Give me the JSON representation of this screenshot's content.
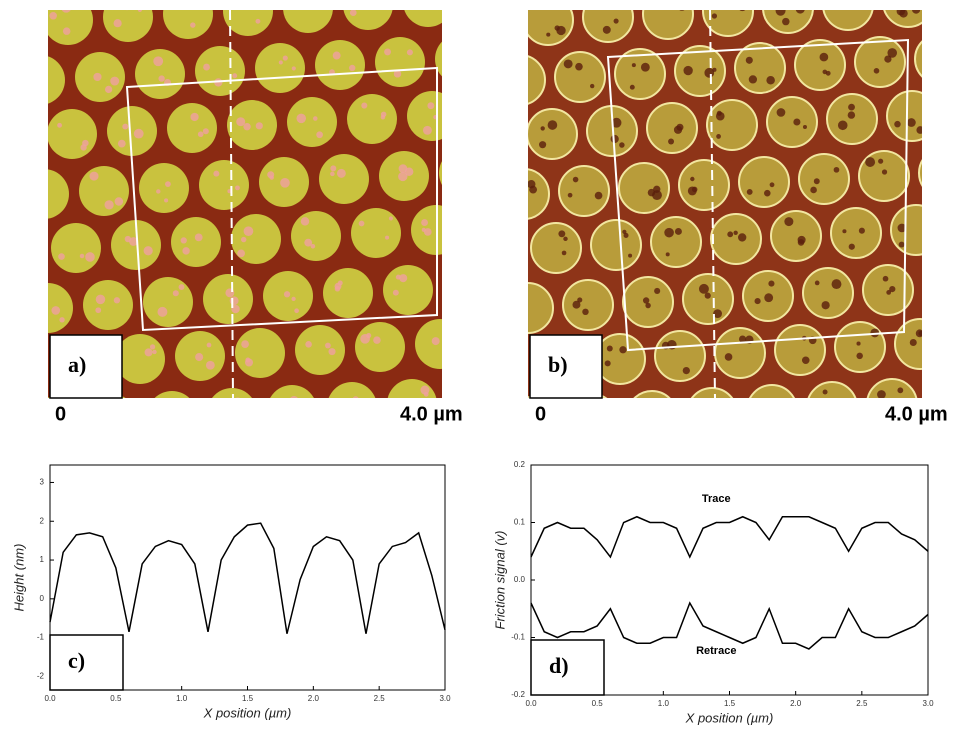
{
  "images": [
    {
      "label": "a)",
      "scale_start": "0",
      "scale_end": "4.0 µm"
    },
    {
      "label": "b)",
      "scale_start": "0",
      "scale_end": "4.0 µm"
    }
  ],
  "chart_data": [
    {
      "type": "line",
      "label": "c)",
      "xlabel": "X position (µm)",
      "ylabel": "Height (nm)",
      "color": "#000000",
      "x": [
        0.0,
        0.1,
        0.2,
        0.3,
        0.4,
        0.5,
        0.6,
        0.7,
        0.8,
        0.9,
        1.0,
        1.1,
        1.2,
        1.3,
        1.4,
        1.5,
        1.6,
        1.7,
        1.8,
        1.9,
        2.0,
        2.1,
        2.2,
        2.3,
        2.4,
        2.5,
        2.6,
        2.7,
        2.8,
        2.9,
        3.0
      ],
      "values": [
        -0.6,
        1.2,
        1.65,
        1.7,
        1.6,
        0.8,
        -0.85,
        0.9,
        1.35,
        1.5,
        1.4,
        0.9,
        -0.85,
        1.0,
        1.6,
        1.9,
        1.95,
        1.3,
        -0.9,
        0.5,
        1.35,
        1.6,
        1.5,
        1.0,
        -0.9,
        0.9,
        1.35,
        1.45,
        1.7,
        0.6,
        -0.8
      ],
      "xlim": [
        0,
        3
      ],
      "xticks": [
        {
          "value": 0,
          "label": "0.0"
        },
        0.5,
        {
          "value": 1,
          "label": "1.0"
        },
        1.5,
        {
          "value": 2,
          "label": "2.0"
        },
        2.5,
        {
          "value": 3,
          "label": "3.0"
        }
      ],
      "ylim": [
        -2.35,
        3.45
      ],
      "yticks": [
        -2,
        -1,
        0,
        1,
        2,
        3
      ]
    },
    {
      "type": "line",
      "label": "d)",
      "xlabel": "X position (µm)",
      "ylabel": "Friction signal (v)",
      "x": [
        0.0,
        0.1,
        0.2,
        0.3,
        0.4,
        0.5,
        0.6,
        0.7,
        0.8,
        0.9,
        1.0,
        1.1,
        1.2,
        1.3,
        1.4,
        1.5,
        1.6,
        1.7,
        1.8,
        1.9,
        2.0,
        2.1,
        2.2,
        2.3,
        2.4,
        2.5,
        2.6,
        2.7,
        2.8,
        2.9,
        3.0
      ],
      "series": [
        {
          "name": "Trace",
          "color": "#000000",
          "values": [
            0.04,
            0.09,
            0.1,
            0.09,
            0.09,
            0.07,
            0.04,
            0.1,
            0.11,
            0.1,
            0.1,
            0.09,
            0.04,
            0.09,
            0.1,
            0.1,
            0.11,
            0.1,
            0.07,
            0.11,
            0.11,
            0.11,
            0.1,
            0.09,
            0.05,
            0.09,
            0.1,
            0.1,
            0.08,
            0.07,
            0.05
          ]
        },
        {
          "name": "Retrace",
          "color": "#000000",
          "values": [
            -0.04,
            -0.09,
            -0.1,
            -0.09,
            -0.09,
            -0.08,
            -0.05,
            -0.1,
            -0.11,
            -0.11,
            -0.1,
            -0.1,
            -0.04,
            -0.08,
            -0.09,
            -0.1,
            -0.11,
            -0.1,
            -0.05,
            -0.11,
            -0.11,
            -0.12,
            -0.1,
            -0.1,
            -0.05,
            -0.09,
            -0.1,
            -0.1,
            -0.09,
            -0.08,
            -0.06
          ]
        }
      ],
      "xlim": [
        0,
        3
      ],
      "xticks": [
        {
          "value": 0,
          "label": "0.0"
        },
        0.5,
        {
          "value": 1,
          "label": "1.0"
        },
        1.5,
        {
          "value": 2,
          "label": "2.0"
        },
        2.5,
        {
          "value": 3,
          "label": "3.0"
        }
      ],
      "ylim": [
        -0.2,
        0.2
      ],
      "yticks": [
        -0.2,
        -0.1,
        {
          "value": 0,
          "label": "0.0"
        },
        0.1,
        0.2
      ]
    }
  ]
}
